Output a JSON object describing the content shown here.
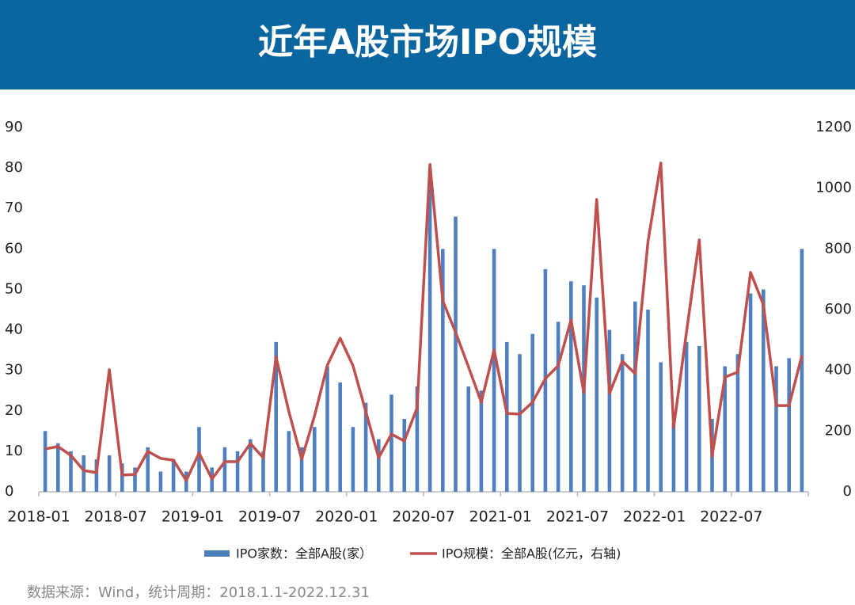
{
  "chart_data": {
    "type": "bar",
    "title": "近年A股市场IPO规模",
    "source": "数据来源：Wind，统计周期：2018.1.1-2022.12.31",
    "categories": [
      "2018-01",
      null,
      null,
      null,
      null,
      null,
      "2018-07",
      null,
      null,
      null,
      null,
      null,
      "2019-01",
      null,
      null,
      null,
      null,
      null,
      "2019-07",
      null,
      null,
      null,
      null,
      null,
      "2020-01",
      null,
      null,
      null,
      null,
      null,
      "2020-07",
      null,
      null,
      null,
      null,
      null,
      "2021-01",
      null,
      null,
      null,
      null,
      null,
      "2021-07",
      null,
      null,
      null,
      null,
      null,
      "2022-01",
      null,
      null,
      null,
      null,
      null,
      "2022-07",
      null,
      null,
      null,
      null,
      null
    ],
    "series": [
      {
        "name": "IPO家数：全部A股(家）",
        "type": "bar",
        "color": "#4f7fbf",
        "values": [
          15,
          12,
          10,
          9,
          8,
          9,
          7,
          6,
          11,
          5,
          8,
          5,
          16,
          6,
          11,
          10,
          13,
          10,
          37,
          15,
          11,
          16,
          31,
          27,
          16,
          22,
          13,
          24,
          18,
          26,
          80,
          60,
          68,
          26,
          25,
          60,
          37,
          34,
          39,
          55,
          42,
          52,
          51,
          48,
          40,
          34,
          47,
          45,
          32,
          17,
          37,
          36,
          18,
          31,
          34,
          49,
          50,
          31,
          33,
          60
        ]
      },
      {
        "name": "IPO规模：全部A股(亿元，右轴)",
        "type": "line",
        "axis": "y2",
        "color": "#c0504d",
        "values": [
          141,
          149,
          120,
          70,
          63,
          402,
          55,
          57,
          133,
          110,
          104,
          37,
          128,
          42,
          99,
          99,
          159,
          112,
          444,
          264,
          107,
          250,
          417,
          506,
          415,
          264,
          112,
          190,
          167,
          277,
          1078,
          629,
          525,
          412,
          295,
          467,
          258,
          256,
          295,
          373,
          415,
          566,
          326,
          963,
          324,
          430,
          389,
          824,
          1083,
          211,
          525,
          830,
          117,
          378,
          394,
          723,
          616,
          284,
          284,
          449
        ]
      }
    ],
    "ylim": [
      0,
      90
    ],
    "yticks": [
      0,
      10,
      20,
      30,
      40,
      50,
      60,
      70,
      80,
      90
    ],
    "y2lim": [
      0,
      1200
    ],
    "y2ticks": [
      0,
      200,
      400,
      600,
      800,
      1000,
      1200
    ]
  }
}
